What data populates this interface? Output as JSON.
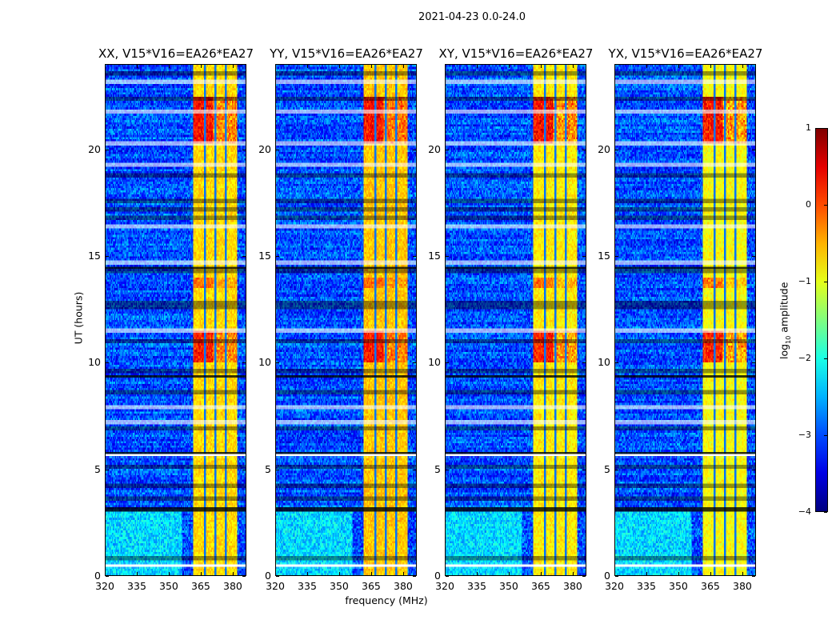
{
  "chart_data": {
    "type": "heatmap",
    "title": "2021-04-23 0.0-24.0",
    "xlabel": "frequency (MHz)",
    "ylabel": "UT (hours)",
    "xlim": [
      320,
      386.4
    ],
    "ylim": [
      0,
      24
    ],
    "xticks": [
      "320",
      "335",
      "350",
      "365",
      "380"
    ],
    "xtick_values": [
      320,
      335,
      350,
      365,
      380
    ],
    "yticks": [
      "0",
      "5",
      "10",
      "15",
      "20"
    ],
    "ytick_values": [
      0,
      5,
      10,
      15,
      20
    ],
    "panels": [
      {
        "title": "XX, V15*V16=EA26*EA27",
        "band_level": -0.8
      },
      {
        "title": "YY, V15*V16=EA26*EA27",
        "band_level": -0.7
      },
      {
        "title": "XY, V15*V16=EA26*EA27",
        "band_level": -0.9
      },
      {
        "title": "YX, V15*V16=EA26*EA27",
        "band_level": -1.0
      }
    ],
    "background_level": -3.0,
    "rfi_band_mhz": [
      361.6,
      382.2
    ],
    "band_dark_lines_mhz": [
      367,
      372,
      377
    ],
    "bright_intervals_hours": [
      [
        10,
        11.5,
        0.3
      ],
      [
        20.3,
        22.5,
        0.4
      ],
      [
        13.5,
        14.0,
        -0.2
      ]
    ],
    "cyan_region": {
      "freq_mhz": [
        320,
        356
      ],
      "hours": [
        0,
        3
      ],
      "level": -2.3
    },
    "flagged_rows_white_hours": [
      0.45,
      5.65,
      7.2,
      7.9,
      11.5,
      14.7,
      16.4,
      19.3,
      20.3,
      21.8,
      23.2
    ],
    "flagged_rows_black_hours": [
      0.8,
      3.05,
      3.15,
      3.6,
      4.2,
      5.1,
      5.75,
      6.9,
      8.6,
      9.35,
      9.6,
      11.0,
      12.6,
      12.8,
      14.3,
      14.45,
      16.8,
      17.2,
      17.6,
      18.8,
      22.4,
      23.6
    ],
    "colorbar": {
      "label_prefix": "log",
      "label_sub": "10",
      "label_suffix": " amplitude",
      "range": [
        -4,
        1
      ],
      "ticks": [
        "1",
        "0",
        "−1",
        "−2",
        "−3",
        "−4"
      ],
      "tick_values": [
        1,
        0,
        -1,
        -2,
        -3,
        -4
      ],
      "colormap": "jet"
    }
  }
}
